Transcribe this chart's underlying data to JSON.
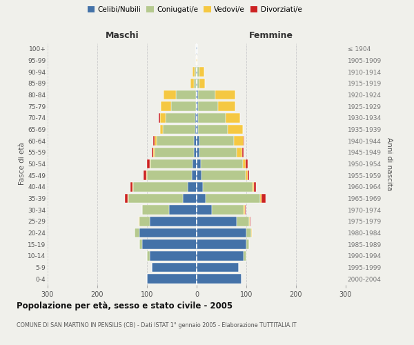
{
  "age_groups": [
    "0-4",
    "5-9",
    "10-14",
    "15-19",
    "20-24",
    "25-29",
    "30-34",
    "35-39",
    "40-44",
    "45-49",
    "50-54",
    "55-59",
    "60-64",
    "65-69",
    "70-74",
    "75-79",
    "80-84",
    "85-89",
    "90-94",
    "95-99",
    "100+"
  ],
  "birth_years": [
    "2000-2004",
    "1995-1999",
    "1990-1994",
    "1985-1989",
    "1980-1984",
    "1975-1979",
    "1970-1974",
    "1965-1969",
    "1960-1964",
    "1955-1959",
    "1950-1954",
    "1945-1949",
    "1940-1944",
    "1935-1939",
    "1930-1934",
    "1925-1929",
    "1920-1924",
    "1915-1919",
    "1910-1914",
    "1905-1909",
    "≤ 1904"
  ],
  "colors": {
    "celibi": "#4472a8",
    "coniugati": "#b5c98e",
    "vedovi": "#f5c842",
    "divorziati": "#cc2222"
  },
  "males": {
    "celibi": [
      100,
      90,
      95,
      110,
      115,
      95,
      55,
      28,
      18,
      10,
      8,
      5,
      5,
      3,
      3,
      2,
      2,
      1,
      1,
      0,
      1
    ],
    "coniugati": [
      0,
      0,
      5,
      5,
      10,
      20,
      55,
      110,
      110,
      90,
      85,
      80,
      75,
      65,
      60,
      50,
      40,
      4,
      3,
      0,
      0
    ],
    "vedovi": [
      0,
      0,
      0,
      0,
      0,
      1,
      0,
      1,
      1,
      2,
      2,
      3,
      5,
      5,
      10,
      20,
      25,
      8,
      5,
      1,
      0
    ],
    "divorziati": [
      0,
      0,
      0,
      0,
      0,
      1,
      0,
      5,
      5,
      5,
      5,
      2,
      2,
      0,
      3,
      0,
      0,
      0,
      0,
      0,
      0
    ]
  },
  "females": {
    "nubili": [
      90,
      85,
      95,
      100,
      100,
      80,
      30,
      18,
      12,
      10,
      8,
      5,
      5,
      3,
      3,
      3,
      3,
      2,
      2,
      0,
      1
    ],
    "coniugati": [
      0,
      0,
      5,
      5,
      10,
      25,
      65,
      110,
      100,
      88,
      85,
      75,
      70,
      60,
      55,
      40,
      35,
      4,
      3,
      0,
      0
    ],
    "vedovi": [
      0,
      0,
      0,
      0,
      1,
      2,
      2,
      3,
      3,
      5,
      5,
      12,
      20,
      30,
      30,
      35,
      40,
      10,
      10,
      2,
      1
    ],
    "divorziati": [
      0,
      0,
      0,
      0,
      0,
      1,
      2,
      8,
      5,
      3,
      5,
      2,
      1,
      0,
      0,
      0,
      0,
      0,
      0,
      0,
      0
    ]
  },
  "title": "Popolazione per età, sesso e stato civile - 2005",
  "subtitle": "COMUNE DI SAN MARTINO IN PENSILIS (CB) - Dati ISTAT 1° gennaio 2005 - Elaborazione TUTTITALIA.IT",
  "xlabel_left": "Maschi",
  "xlabel_right": "Femmine",
  "ylabel_left": "Fasce di età",
  "ylabel_right": "Anni di nascita",
  "xlim": 300,
  "bg_color": "#f0f0eb",
  "plot_bg": "#f0f0eb",
  "grid_color": "#cccccc"
}
